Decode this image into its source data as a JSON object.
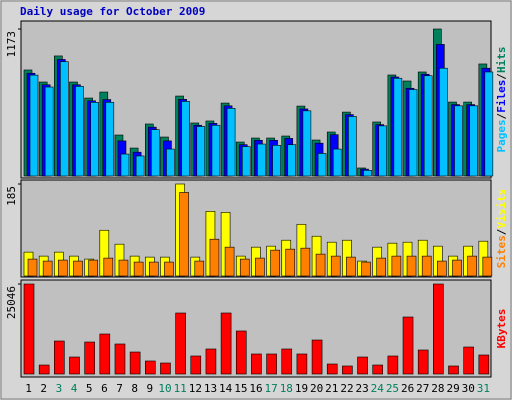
{
  "chart_data": [
    {
      "type": "bar",
      "title": "Daily usage for October 2009",
      "title_color": "#0000c0",
      "legend_separator": "/",
      "ylim": [
        0,
        1173
      ],
      "yticks": [
        1173
      ],
      "series": [
        {
          "name": "Hits",
          "color": "#00805c",
          "values": [
            846,
            750,
            958,
            750,
            622,
            670,
            327,
            223,
            415,
            311,
            638,
            423,
            439,
            582,
            271,
            303,
            303,
            319,
            558,
            287,
            351,
            510,
            64,
            431,
            806,
            758,
            830,
            1173,
            590,
            590,
            894
          ]
        },
        {
          "name": "Files",
          "color": "#0000ff",
          "values": [
            820,
            728,
            930,
            728,
            600,
            610,
            280,
            190,
            390,
            280,
            612,
            405,
            420,
            560,
            250,
            285,
            285,
            300,
            535,
            262,
            330,
            490,
            55,
            410,
            790,
            700,
            812,
            1050,
            570,
            570,
            860
          ]
        },
        {
          "name": "Pages",
          "color": "#00c0ff",
          "values": [
            805,
            710,
            912,
            715,
            588,
            588,
            175,
            160,
            370,
            215,
            595,
            395,
            405,
            540,
            235,
            255,
            245,
            250,
            520,
            180,
            215,
            475,
            45,
            400,
            780,
            690,
            800,
            860,
            560,
            560,
            830
          ]
        }
      ]
    },
    {
      "type": "bar",
      "legend_separator": "/",
      "ylim": [
        0,
        185
      ],
      "yticks": [
        185
      ],
      "series": [
        {
          "name": "Visits",
          "color": "#ffff00",
          "values": [
            48,
            40,
            48,
            40,
            34,
            92,
            64,
            40,
            38,
            38,
            185,
            38,
            130,
            128,
            40,
            58,
            60,
            72,
            104,
            80,
            68,
            72,
            30,
            58,
            66,
            68,
            72,
            60,
            40,
            60,
            70
          ]
        },
        {
          "name": "Sites",
          "color": "#ff8000",
          "values": [
            34,
            30,
            32,
            30,
            32,
            36,
            32,
            28,
            28,
            28,
            168,
            30,
            74,
            58,
            34,
            36,
            52,
            54,
            56,
            44,
            40,
            38,
            28,
            36,
            40,
            40,
            40,
            30,
            32,
            40,
            38
          ]
        }
      ]
    },
    {
      "type": "bar",
      "ylim": [
        0,
        25046
      ],
      "yticks": [
        25046
      ],
      "categories": [
        "1",
        "2",
        "3",
        "4",
        "5",
        "6",
        "7",
        "8",
        "9",
        "10",
        "11",
        "12",
        "13",
        "14",
        "15",
        "16",
        "17",
        "18",
        "19",
        "20",
        "21",
        "22",
        "23",
        "24",
        "25",
        "26",
        "27",
        "28",
        "29",
        "30",
        "31"
      ],
      "category_colors": [
        "#000000",
        "#000000",
        "#00805c",
        "#00805c",
        "#000000",
        "#000000",
        "#000000",
        "#000000",
        "#000000",
        "#00805c",
        "#00805c",
        "#000000",
        "#000000",
        "#000000",
        "#000000",
        "#000000",
        "#00805c",
        "#00805c",
        "#000000",
        "#000000",
        "#000000",
        "#000000",
        "#000000",
        "#00805c",
        "#00805c",
        "#000000",
        "#000000",
        "#000000",
        "#000000",
        "#000000",
        "#00805c"
      ],
      "series": [
        {
          "name": "KBytes",
          "color": "#ff0000",
          "values": [
            25046,
            2500,
            9180,
            4730,
            8900,
            11130,
            8350,
            6120,
            3620,
            3060,
            16975,
            5010,
            6960,
            16975,
            11970,
            5570,
            5570,
            6960,
            5570,
            9460,
            2780,
            2230,
            4730,
            2500,
            5010,
            15860,
            6680,
            25046,
            2230,
            7510,
            5290
          ]
        }
      ]
    }
  ]
}
